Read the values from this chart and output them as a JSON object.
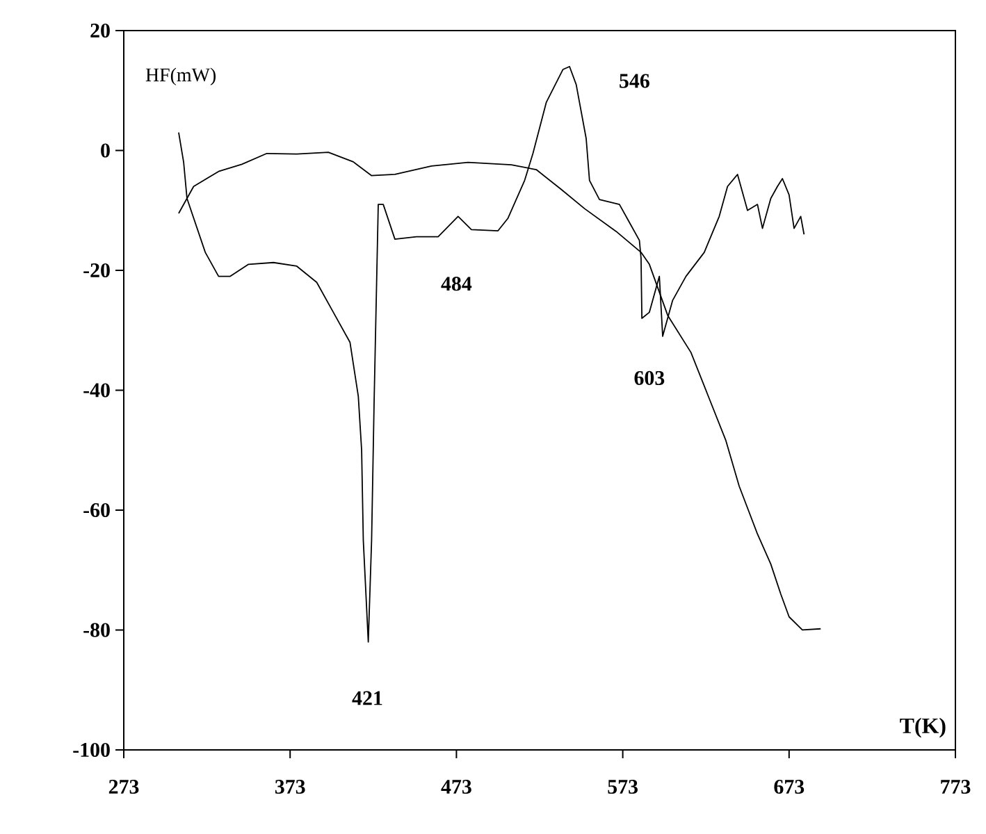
{
  "chart_data": {
    "type": "line",
    "xlabel": "T(K)",
    "ylabel": "HF(mW)",
    "xlim": [
      273,
      773
    ],
    "xticks": [
      273,
      373,
      473,
      573,
      673,
      773
    ],
    "ylim": [
      -100,
      20
    ],
    "yticks": [
      -100,
      -80,
      -60,
      -40,
      -20,
      0,
      20
    ],
    "marker": "none",
    "line_style": "solid",
    "series": [
      {
        "color": "#000000",
        "x": [
          306,
          309,
          311,
          322,
          330,
          337,
          348,
          363,
          377,
          389,
          399,
          409,
          414,
          416,
          417,
          420,
          422,
          423.5,
          426,
          429,
          436,
          449,
          462,
          474,
          482,
          498,
          504,
          514,
          519,
          527,
          537,
          541,
          545,
          551,
          553,
          559,
          571,
          577,
          583,
          584,
          584.5,
          589,
          595,
          597,
          603,
          611,
          622,
          631,
          636,
          642,
          648,
          654,
          657,
          662,
          666,
          669,
          673,
          676,
          680,
          682
        ],
        "values": [
          3,
          -2,
          -8,
          -17,
          -21,
          -21,
          -19,
          -18.7,
          -19.3,
          -22,
          -27,
          -32,
          -41,
          -50,
          -65,
          -82,
          -65,
          -42,
          -9,
          -9,
          -14.8,
          -14.4,
          -14.4,
          -11,
          -13.2,
          -13.4,
          -11.3,
          -5,
          -0.5,
          8,
          13.5,
          14,
          11,
          2,
          -5,
          -8.2,
          -9,
          -12,
          -15,
          -18,
          -28,
          -27,
          -21,
          -31,
          -25,
          -21,
          -17,
          -11,
          -6,
          -4,
          -10,
          -9,
          -13,
          -8,
          -6,
          -4.7,
          -7.4,
          -13,
          -11,
          -14
        ]
      },
      {
        "color": "#000000",
        "x": [
          306,
          315,
          330,
          344,
          359,
          377,
          396,
          411,
          422,
          436,
          458,
          480,
          506,
          521,
          536,
          550,
          569,
          584,
          589,
          600,
          614,
          624,
          635,
          643,
          654,
          662,
          668,
          673,
          681,
          692
        ],
        "values": [
          -10.5,
          -6,
          -3.5,
          -2.3,
          -0.5,
          -0.6,
          -0.3,
          -1.9,
          -4.2,
          -4,
          -2.6,
          -2,
          -2.4,
          -3.2,
          -6.5,
          -9.7,
          -13.5,
          -17,
          -19,
          -27.5,
          -33.7,
          -40.7,
          -48.4,
          -56,
          -64,
          -69,
          -74,
          -77.8,
          -80,
          -79.8
        ]
      }
    ],
    "annotations": [
      "421",
      "484",
      "546",
      "603"
    ]
  }
}
